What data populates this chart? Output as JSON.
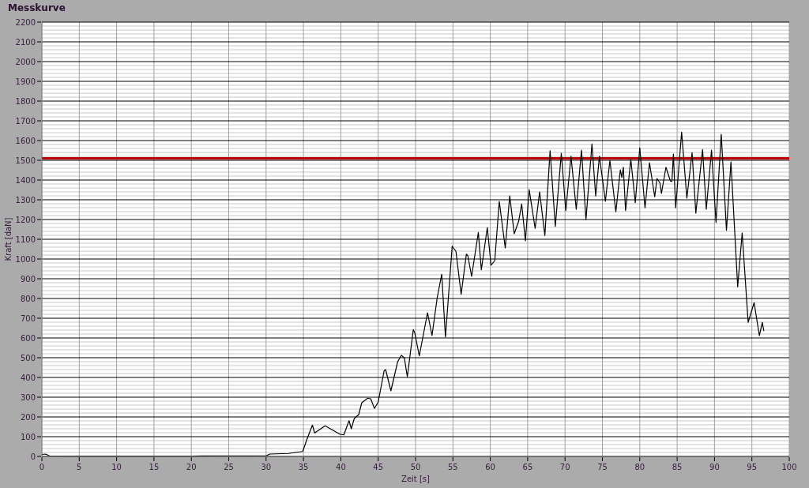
{
  "chart_data": {
    "type": "line",
    "title": "Messkurve",
    "xlabel": "Zeit [s]",
    "ylabel": "Kraft [daN]",
    "xlim": [
      0,
      100
    ],
    "xticks": [
      0,
      5,
      10,
      15,
      20,
      25,
      30,
      35,
      40,
      45,
      50,
      55,
      60,
      65,
      70,
      75,
      80,
      85,
      90,
      95,
      100
    ],
    "ylim": [
      0,
      2200
    ],
    "yticks": [
      0,
      100,
      200,
      300,
      400,
      500,
      600,
      700,
      800,
      900,
      1000,
      1100,
      1200,
      1300,
      1400,
      1500,
      1600,
      1700,
      1800,
      1900,
      2000,
      2100,
      2200
    ],
    "grid": true,
    "marker": "none",
    "line_style": "solid",
    "ref_lines": [
      {
        "axis": "y",
        "value": 1510,
        "color": "#c00000"
      }
    ],
    "series": [
      {
        "color": "#000000",
        "x": [
          0,
          0.5,
          1,
          5,
          10,
          20,
          30,
          30.5,
          33,
          34.3,
          34.9,
          35.5,
          36.2,
          36.5,
          37.9,
          39.9,
          40.4,
          41.1,
          41.4,
          41.8,
          42.4,
          42.8,
          43.6,
          44.0,
          44.5,
          45.0,
          45.8,
          46.0,
          46.7,
          47.6,
          48.1,
          48.5,
          48.9,
          49.7,
          49.9,
          50.5,
          51.6,
          52.2,
          52.9,
          53.5,
          54.0,
          54.9,
          55.4,
          56.1,
          56.8,
          57.0,
          57.5,
          58.4,
          58.8,
          59.6,
          60.1,
          60.6,
          61.2,
          62.0,
          62.6,
          63.2,
          63.8,
          64.2,
          64.7,
          65.2,
          66.0,
          66.6,
          67.3,
          68.0,
          68.7,
          69.5,
          70.1,
          70.8,
          71.5,
          72.2,
          72.8,
          73.6,
          74.1,
          74.6,
          75.4,
          76.0,
          76.8,
          77.4,
          77.6,
          77.8,
          78.1,
          78.8,
          79.4,
          80.0,
          80.7,
          81.3,
          82.0,
          82.3,
          82.7,
          82.9,
          83.5,
          84.1,
          84.3,
          84.5,
          84.8,
          85.6,
          86.3,
          87.0,
          87.5,
          88.4,
          88.9,
          89.6,
          90.2,
          90.9,
          91.6,
          92.2,
          93.1,
          93.7,
          94.5,
          95.3,
          96.0,
          96.4,
          96.6
        ],
        "values": [
          10,
          12,
          3,
          2,
          2,
          2,
          3,
          12,
          15,
          22,
          25,
          90,
          159,
          119,
          155,
          112,
          109,
          181,
          140,
          192,
          212,
          272,
          295,
          292,
          243,
          275,
          435,
          439,
          332,
          479,
          512,
          499,
          403,
          643,
          625,
          509,
          728,
          612,
          805,
          923,
          605,
          1065,
          1039,
          821,
          1025,
          1016,
          912,
          1135,
          945,
          1159,
          968,
          992,
          1292,
          1056,
          1320,
          1128,
          1192,
          1279,
          1092,
          1352,
          1155,
          1340,
          1119,
          1549,
          1165,
          1536,
          1245,
          1521,
          1252,
          1552,
          1199,
          1583,
          1319,
          1521,
          1292,
          1499,
          1239,
          1452,
          1412,
          1465,
          1245,
          1505,
          1285,
          1563,
          1259,
          1488,
          1315,
          1408,
          1385,
          1332,
          1465,
          1395,
          1392,
          1532,
          1259,
          1643,
          1308,
          1539,
          1232,
          1555,
          1252,
          1552,
          1185,
          1632,
          1145,
          1492,
          859,
          1132,
          679,
          779,
          612,
          679,
          635
        ]
      }
    ]
  }
}
